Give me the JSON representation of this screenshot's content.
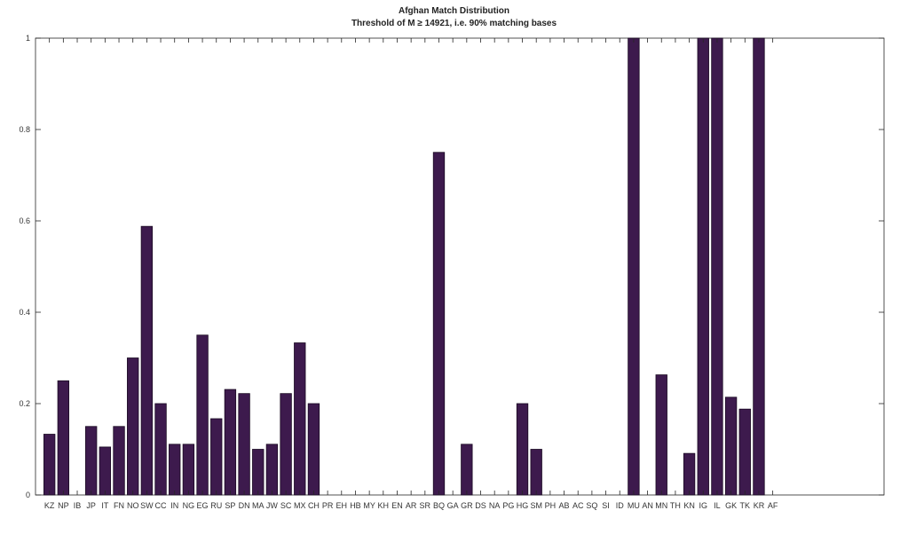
{
  "chart_data": {
    "type": "bar",
    "title": "Afghan Match Distribution",
    "subtitle": "Threshold of M ≥ 14921, i.e. 90% matching bases",
    "xlabel": "",
    "ylabel": "",
    "ylim": [
      0,
      1
    ],
    "xlim": [
      0,
      61
    ],
    "yticks": [
      0,
      0.2,
      0.4,
      0.6,
      0.8,
      1
    ],
    "ytick_labels": [
      "0",
      "0.2",
      "0.4",
      "0.6",
      "0.8",
      "1"
    ],
    "grid": false,
    "bar_color": "#3d1a4d",
    "categories": [
      "KZ",
      "NP",
      "IB",
      "JP",
      "IT",
      "FN",
      "NO",
      "SW",
      "CC",
      "IN",
      "NG",
      "EG",
      "RU",
      "SP",
      "DN",
      "MA",
      "JW",
      "SC",
      "MX",
      "CH",
      "PR",
      "EH",
      "HB",
      "MY",
      "KH",
      "EN",
      "AR",
      "SR",
      "BQ",
      "GA",
      "GR",
      "DS",
      "NA",
      "PG",
      "HG",
      "SM",
      "PH",
      "AB",
      "AC",
      "SQ",
      "SI",
      "ID",
      "MU",
      "AN",
      "MN",
      "TH",
      "KN",
      "IG",
      "IL",
      "GK",
      "TK",
      "KR",
      "AF"
    ],
    "values": [
      0.133,
      0.25,
      0,
      0.15,
      0.105,
      0.15,
      0.3,
      0.588,
      0.2,
      0.111,
      0.111,
      0.35,
      0.167,
      0.231,
      0.222,
      0.1,
      0.111,
      0.222,
      0.333,
      0.2,
      0,
      0,
      0,
      0,
      0,
      0,
      0,
      0,
      0.75,
      0,
      0.111,
      0,
      0,
      0,
      0.2,
      0.1,
      0,
      0,
      0,
      0,
      0,
      0,
      1,
      0,
      0.263,
      0,
      0.091,
      1,
      1,
      0.214,
      0.188,
      1,
      0
    ]
  }
}
